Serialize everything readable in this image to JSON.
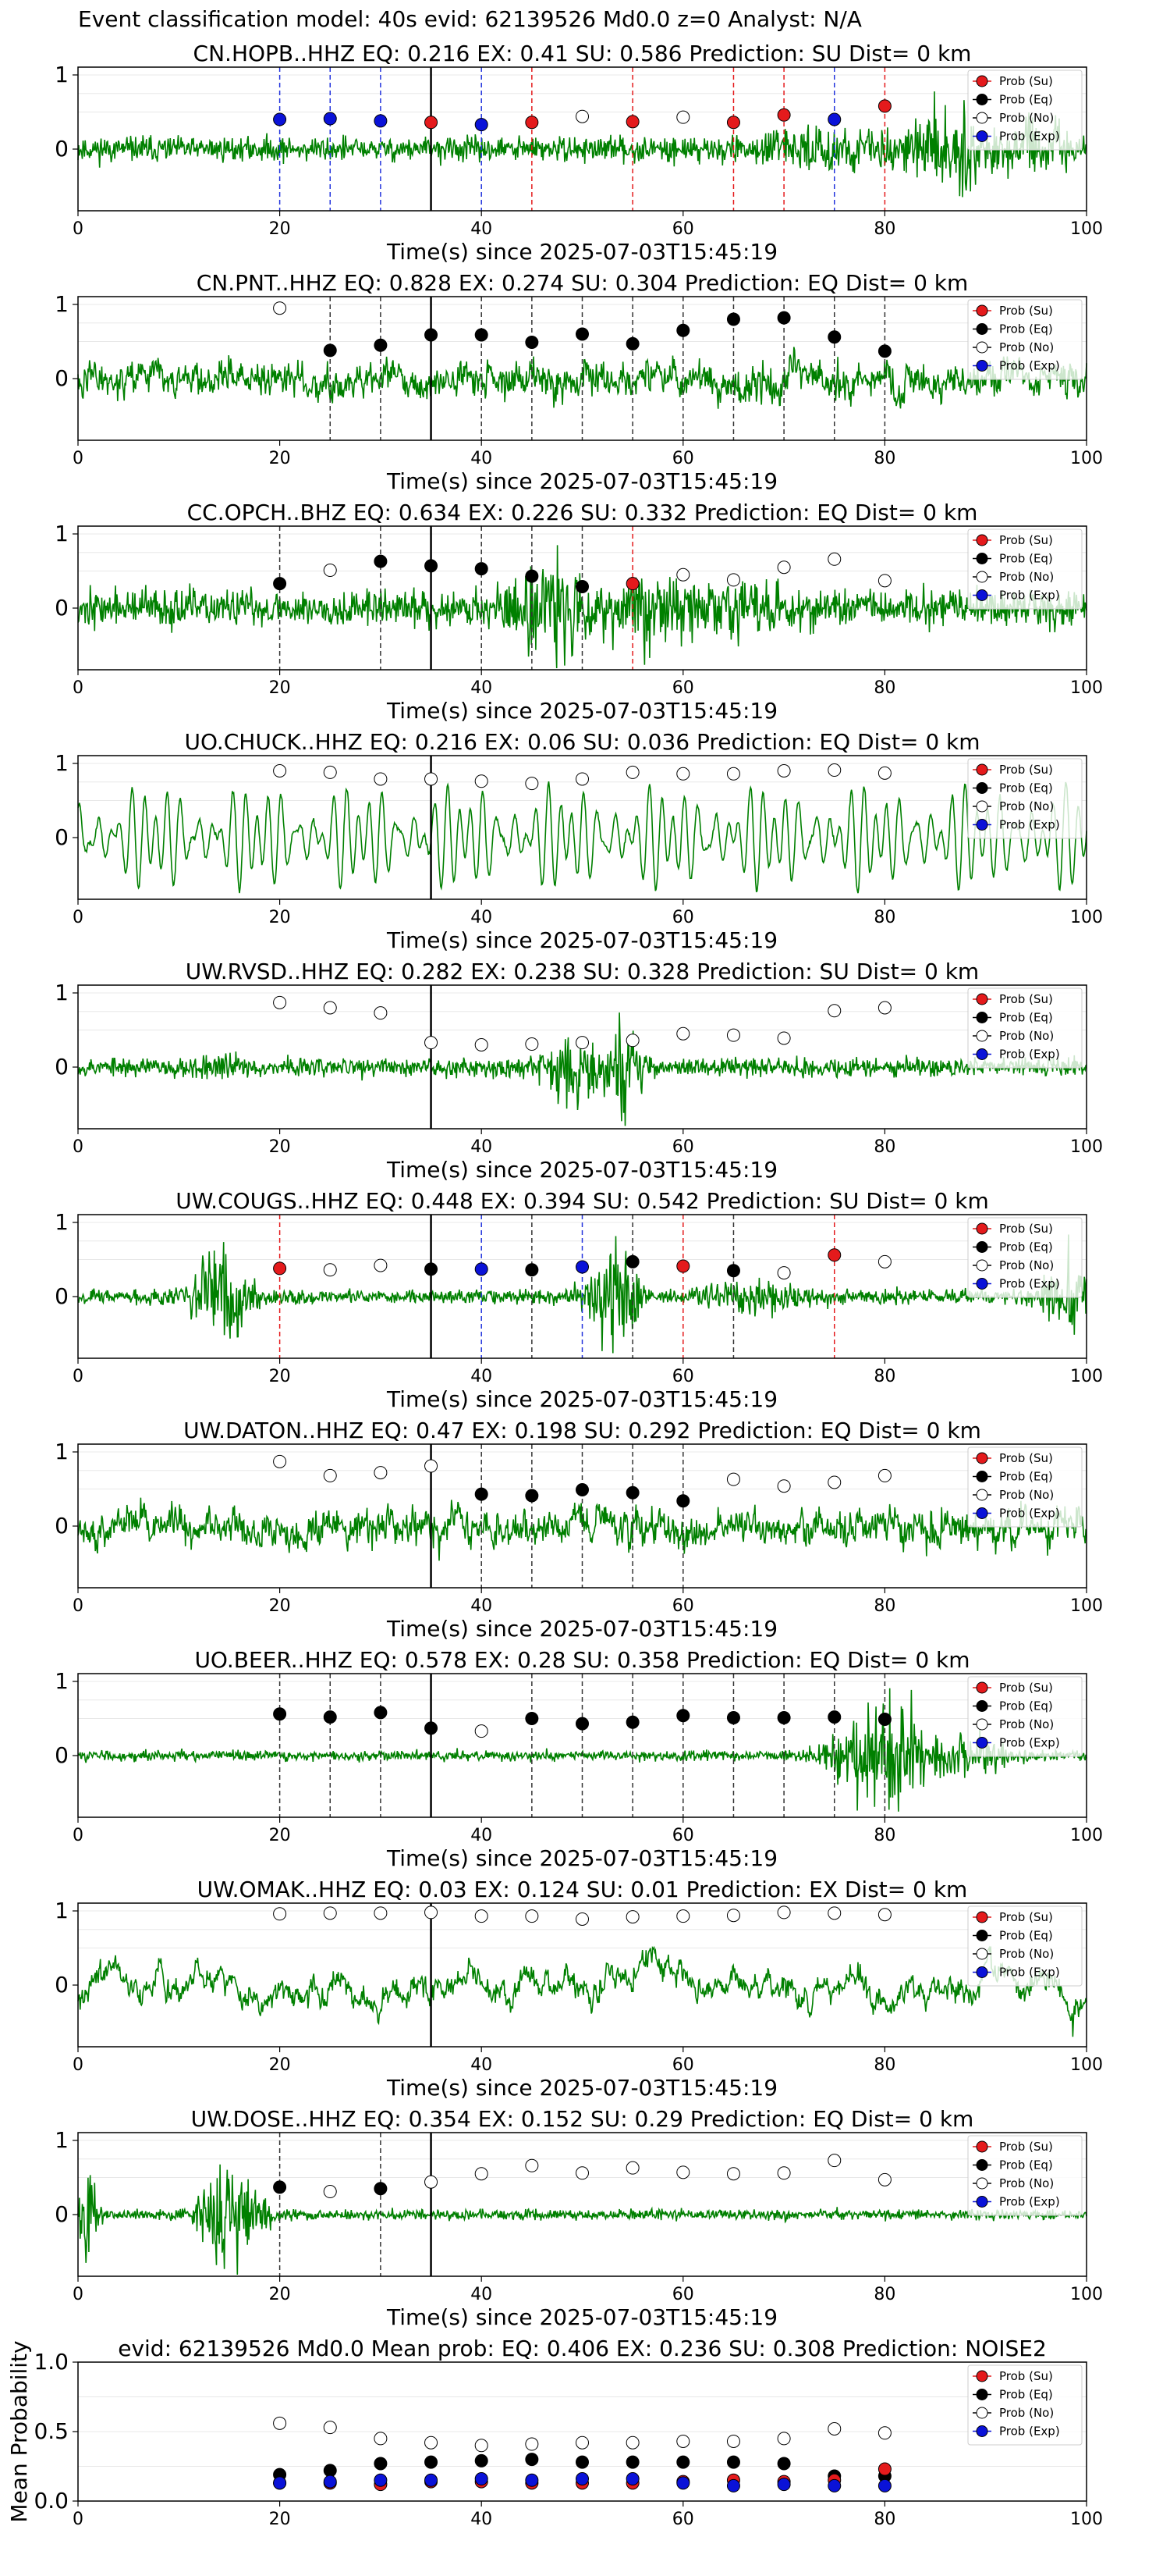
{
  "figure": {
    "title": "Event classification model: 40s evid: 62139526 Md0.0 z=0 Analyst: N/A",
    "xlabel": "Time(s) since 2025-07-03T15:45:19"
  },
  "legend": {
    "items": [
      {
        "label": "Prob (Su)",
        "fill": "#e41a1c"
      },
      {
        "label": "Prob (Eq)",
        "fill": "#000000"
      },
      {
        "label": "Prob (No)",
        "fill": "#ffffff"
      },
      {
        "label": "Prob (Exp)",
        "fill": "#0a12d8"
      }
    ]
  },
  "colors": {
    "waveform": "#008000",
    "su": "#e41a1c",
    "eq": "#000000",
    "no": "#ffffff",
    "exp": "#0a12d8",
    "dash_su": "#e41a1c",
    "dash_eq": "#333333",
    "dash_exp": "#2233dd"
  },
  "chart_data": [
    {
      "type": "line",
      "station": "CN.HOPB..HHZ",
      "prediction": "SU",
      "title": "CN.HOPB..HHZ   EQ: 0.216   EX: 0.41   SU: 0.586   Prediction: SU    Dist= 0 km",
      "xlim": [
        0,
        100
      ],
      "yticks": [
        0,
        1
      ],
      "xticks": [
        0,
        20,
        40,
        60,
        80,
        100
      ],
      "pick_time": 35,
      "waveform_style": "hf",
      "seed": 11,
      "points": [
        {
          "t": 20,
          "cls": "exp",
          "p": 0.4
        },
        {
          "t": 25,
          "cls": "exp",
          "p": 0.41
        },
        {
          "t": 30,
          "cls": "exp",
          "p": 0.38
        },
        {
          "t": 35,
          "cls": "su",
          "p": 0.36
        },
        {
          "t": 40,
          "cls": "exp",
          "p": 0.33
        },
        {
          "t": 45,
          "cls": "su",
          "p": 0.36
        },
        {
          "t": 50,
          "cls": "no",
          "p": 0.44
        },
        {
          "t": 55,
          "cls": "su",
          "p": 0.37
        },
        {
          "t": 60,
          "cls": "no",
          "p": 0.43
        },
        {
          "t": 65,
          "cls": "su",
          "p": 0.36
        },
        {
          "t": 70,
          "cls": "su",
          "p": 0.46
        },
        {
          "t": 75,
          "cls": "exp",
          "p": 0.4
        },
        {
          "t": 80,
          "cls": "su",
          "p": 0.58
        }
      ]
    },
    {
      "type": "line",
      "station": "CN.PNT..HHZ",
      "prediction": "EQ",
      "title": "CN.PNT..HHZ   EQ: 0.828  EX: 0.274  SU: 0.304   Prediction: EQ    Dist= 0 km",
      "xlim": [
        0,
        100
      ],
      "yticks": [
        0,
        1
      ],
      "xticks": [
        0,
        20,
        40,
        60,
        80,
        100
      ],
      "pick_time": 35,
      "waveform_style": "mixed",
      "seed": 23,
      "points": [
        {
          "t": 20,
          "cls": "no",
          "p": 0.95
        },
        {
          "t": 25,
          "cls": "eq",
          "p": 0.38
        },
        {
          "t": 30,
          "cls": "eq",
          "p": 0.45
        },
        {
          "t": 35,
          "cls": "eq",
          "p": 0.59
        },
        {
          "t": 40,
          "cls": "eq",
          "p": 0.59
        },
        {
          "t": 45,
          "cls": "eq",
          "p": 0.49
        },
        {
          "t": 50,
          "cls": "eq",
          "p": 0.6
        },
        {
          "t": 55,
          "cls": "eq",
          "p": 0.47
        },
        {
          "t": 60,
          "cls": "eq",
          "p": 0.65
        },
        {
          "t": 65,
          "cls": "eq",
          "p": 0.8
        },
        {
          "t": 70,
          "cls": "eq",
          "p": 0.82
        },
        {
          "t": 75,
          "cls": "eq",
          "p": 0.56
        },
        {
          "t": 80,
          "cls": "eq",
          "p": 0.37
        }
      ]
    },
    {
      "type": "line",
      "station": "CC.OPCH..BHZ",
      "prediction": "EQ",
      "title": "CC.OPCH..BHZ   EQ: 0.634  EX: 0.226  SU: 0.332   Prediction: EQ    Dist= 0 km",
      "xlim": [
        0,
        100
      ],
      "yticks": [
        0,
        1
      ],
      "xticks": [
        0,
        20,
        40,
        60,
        80,
        100
      ],
      "pick_time": 35,
      "waveform_style": "burst",
      "seed": 37,
      "points": [
        {
          "t": 20,
          "cls": "eq",
          "p": 0.33
        },
        {
          "t": 25,
          "cls": "no",
          "p": 0.51
        },
        {
          "t": 30,
          "cls": "eq",
          "p": 0.63
        },
        {
          "t": 35,
          "cls": "eq",
          "p": 0.57
        },
        {
          "t": 40,
          "cls": "eq",
          "p": 0.53
        },
        {
          "t": 45,
          "cls": "eq",
          "p": 0.43
        },
        {
          "t": 50,
          "cls": "eq",
          "p": 0.29
        },
        {
          "t": 55,
          "cls": "su",
          "p": 0.33
        },
        {
          "t": 60,
          "cls": "no",
          "p": 0.45
        },
        {
          "t": 65,
          "cls": "no",
          "p": 0.38
        },
        {
          "t": 70,
          "cls": "no",
          "p": 0.55
        },
        {
          "t": 75,
          "cls": "no",
          "p": 0.66
        },
        {
          "t": 80,
          "cls": "no",
          "p": 0.37
        }
      ]
    },
    {
      "type": "line",
      "station": "UO.CHUCK..HHZ",
      "prediction": "EQ",
      "title": "UO.CHUCK..HHZ   EQ: 0.216   EX: 0.06   SU: 0.036    Prediction: EQ    Dist= 0 km",
      "xlim": [
        0,
        100
      ],
      "yticks": [
        0,
        1
      ],
      "xticks": [
        0,
        20,
        40,
        60,
        80,
        100
      ],
      "pick_time": 35,
      "waveform_style": "smooth",
      "seed": 41,
      "points": [
        {
          "t": 20,
          "cls": "no",
          "p": 0.9
        },
        {
          "t": 25,
          "cls": "no",
          "p": 0.88
        },
        {
          "t": 30,
          "cls": "no",
          "p": 0.79
        },
        {
          "t": 35,
          "cls": "no",
          "p": 0.79
        },
        {
          "t": 40,
          "cls": "no",
          "p": 0.76
        },
        {
          "t": 45,
          "cls": "no",
          "p": 0.73
        },
        {
          "t": 50,
          "cls": "no",
          "p": 0.79
        },
        {
          "t": 55,
          "cls": "no",
          "p": 0.88
        },
        {
          "t": 60,
          "cls": "no",
          "p": 0.86
        },
        {
          "t": 65,
          "cls": "no",
          "p": 0.86
        },
        {
          "t": 70,
          "cls": "no",
          "p": 0.9
        },
        {
          "t": 75,
          "cls": "no",
          "p": 0.91
        },
        {
          "t": 80,
          "cls": "no",
          "p": 0.87
        }
      ]
    },
    {
      "type": "line",
      "station": "UW.RVSD..HHZ",
      "prediction": "SU",
      "title": "UW.RVSD..HHZ   EQ: 0.282  EX: 0.238  SU: 0.328   Prediction: SU    Dist= 0 km",
      "xlim": [
        0,
        100
      ],
      "yticks": [
        0,
        1
      ],
      "xticks": [
        0,
        20,
        40,
        60,
        80,
        100
      ],
      "pick_time": 35,
      "waveform_style": "noise_burst",
      "seed": 53,
      "points": [
        {
          "t": 20,
          "cls": "no",
          "p": 0.87
        },
        {
          "t": 25,
          "cls": "no",
          "p": 0.8
        },
        {
          "t": 30,
          "cls": "no",
          "p": 0.73
        },
        {
          "t": 35,
          "cls": "no",
          "p": 0.33
        },
        {
          "t": 40,
          "cls": "no",
          "p": 0.3
        },
        {
          "t": 45,
          "cls": "no",
          "p": 0.31
        },
        {
          "t": 50,
          "cls": "no",
          "p": 0.33
        },
        {
          "t": 55,
          "cls": "no",
          "p": 0.36
        },
        {
          "t": 60,
          "cls": "no",
          "p": 0.45
        },
        {
          "t": 65,
          "cls": "no",
          "p": 0.43
        },
        {
          "t": 70,
          "cls": "no",
          "p": 0.39
        },
        {
          "t": 75,
          "cls": "no",
          "p": 0.76
        },
        {
          "t": 80,
          "cls": "no",
          "p": 0.8
        }
      ]
    },
    {
      "type": "line",
      "station": "UW.COUGS..HHZ",
      "prediction": "SU",
      "title": "UW.COUGS..HHZ   EQ: 0.448  EX: 0.394  SU: 0.542   Prediction: SU    Dist= 0 km",
      "xlim": [
        0,
        100
      ],
      "yticks": [
        0,
        1
      ],
      "xticks": [
        0,
        20,
        40,
        60,
        80,
        100
      ],
      "pick_time": 35,
      "waveform_style": "two_bursts",
      "seed": 67,
      "points": [
        {
          "t": 20,
          "cls": "su",
          "p": 0.38
        },
        {
          "t": 25,
          "cls": "no",
          "p": 0.36
        },
        {
          "t": 30,
          "cls": "no",
          "p": 0.42
        },
        {
          "t": 35,
          "cls": "eq",
          "p": 0.37
        },
        {
          "t": 40,
          "cls": "exp",
          "p": 0.37
        },
        {
          "t": 45,
          "cls": "eq",
          "p": 0.36
        },
        {
          "t": 50,
          "cls": "exp",
          "p": 0.4
        },
        {
          "t": 55,
          "cls": "eq",
          "p": 0.47
        },
        {
          "t": 60,
          "cls": "su",
          "p": 0.41
        },
        {
          "t": 65,
          "cls": "eq",
          "p": 0.35
        },
        {
          "t": 70,
          "cls": "no",
          "p": 0.32
        },
        {
          "t": 75,
          "cls": "su",
          "p": 0.56
        },
        {
          "t": 80,
          "cls": "no",
          "p": 0.47
        }
      ]
    },
    {
      "type": "line",
      "station": "UW.DATON..HHZ",
      "prediction": "EQ",
      "title": "UW.DATON..HHZ   EQ: 0.47  EX: 0.198  SU: 0.292   Prediction: EQ    Dist= 0 km",
      "xlim": [
        0,
        100
      ],
      "yticks": [
        0,
        1
      ],
      "xticks": [
        0,
        20,
        40,
        60,
        80,
        100
      ],
      "pick_time": 35,
      "waveform_style": "mixed",
      "seed": 79,
      "points": [
        {
          "t": 20,
          "cls": "no",
          "p": 0.87
        },
        {
          "t": 25,
          "cls": "no",
          "p": 0.68
        },
        {
          "t": 30,
          "cls": "no",
          "p": 0.72
        },
        {
          "t": 35,
          "cls": "no",
          "p": 0.81
        },
        {
          "t": 40,
          "cls": "eq",
          "p": 0.43
        },
        {
          "t": 45,
          "cls": "eq",
          "p": 0.41
        },
        {
          "t": 50,
          "cls": "eq",
          "p": 0.49
        },
        {
          "t": 55,
          "cls": "eq",
          "p": 0.45
        },
        {
          "t": 60,
          "cls": "eq",
          "p": 0.34
        },
        {
          "t": 65,
          "cls": "no",
          "p": 0.63
        },
        {
          "t": 70,
          "cls": "no",
          "p": 0.54
        },
        {
          "t": 75,
          "cls": "no",
          "p": 0.59
        },
        {
          "t": 80,
          "cls": "no",
          "p": 0.68
        }
      ]
    },
    {
      "type": "line",
      "station": "UO.BEER..HHZ",
      "prediction": "EQ",
      "title": "UO.BEER..HHZ   EQ: 0.578  EX: 0.28  SU: 0.358   Prediction: EQ    Dist= 0 km",
      "xlim": [
        0,
        100
      ],
      "yticks": [
        0,
        1
      ],
      "xticks": [
        0,
        20,
        40,
        60,
        80,
        100
      ],
      "pick_time": 35,
      "waveform_style": "late_burst",
      "seed": 83,
      "points": [
        {
          "t": 20,
          "cls": "eq",
          "p": 0.56
        },
        {
          "t": 25,
          "cls": "eq",
          "p": 0.52
        },
        {
          "t": 30,
          "cls": "eq",
          "p": 0.58
        },
        {
          "t": 35,
          "cls": "eq",
          "p": 0.37
        },
        {
          "t": 40,
          "cls": "no",
          "p": 0.33
        },
        {
          "t": 45,
          "cls": "eq",
          "p": 0.5
        },
        {
          "t": 50,
          "cls": "eq",
          "p": 0.43
        },
        {
          "t": 55,
          "cls": "eq",
          "p": 0.45
        },
        {
          "t": 60,
          "cls": "eq",
          "p": 0.54
        },
        {
          "t": 65,
          "cls": "eq",
          "p": 0.51
        },
        {
          "t": 70,
          "cls": "eq",
          "p": 0.51
        },
        {
          "t": 75,
          "cls": "eq",
          "p": 0.52
        },
        {
          "t": 80,
          "cls": "eq",
          "p": 0.49
        }
      ]
    },
    {
      "type": "line",
      "station": "UW.OMAK..HHZ",
      "prediction": "EX",
      "title": "UW.OMAK..HHZ   EQ: 0.03  EX: 0.124  SU: 0.01   Prediction: EX    Dist= 0 km",
      "xlim": [
        0,
        100
      ],
      "yticks": [
        0,
        1
      ],
      "xticks": [
        0,
        20,
        40,
        60,
        80,
        100
      ],
      "pick_time": 35,
      "waveform_style": "lowfreq",
      "seed": 97,
      "points": [
        {
          "t": 20,
          "cls": "no",
          "p": 0.96
        },
        {
          "t": 25,
          "cls": "no",
          "p": 0.97
        },
        {
          "t": 30,
          "cls": "no",
          "p": 0.97
        },
        {
          "t": 35,
          "cls": "no",
          "p": 0.98
        },
        {
          "t": 40,
          "cls": "no",
          "p": 0.93
        },
        {
          "t": 45,
          "cls": "no",
          "p": 0.93
        },
        {
          "t": 50,
          "cls": "no",
          "p": 0.89
        },
        {
          "t": 55,
          "cls": "no",
          "p": 0.92
        },
        {
          "t": 60,
          "cls": "no",
          "p": 0.93
        },
        {
          "t": 65,
          "cls": "no",
          "p": 0.94
        },
        {
          "t": 70,
          "cls": "no",
          "p": 0.98
        },
        {
          "t": 75,
          "cls": "no",
          "p": 0.97
        },
        {
          "t": 80,
          "cls": "no",
          "p": 0.95
        }
      ]
    },
    {
      "type": "line",
      "station": "UW.DOSE..HHZ",
      "prediction": "EQ",
      "title": "UW.DOSE..HHZ   EQ: 0.354  EX: 0.152  SU: 0.29   Prediction: EQ    Dist= 0 km",
      "xlim": [
        0,
        100
      ],
      "yticks": [
        0,
        1
      ],
      "xticks": [
        0,
        20,
        40,
        60,
        80,
        100
      ],
      "pick_time": 35,
      "waveform_style": "early_burst",
      "seed": 101,
      "points": [
        {
          "t": 20,
          "cls": "eq",
          "p": 0.37
        },
        {
          "t": 25,
          "cls": "no",
          "p": 0.31
        },
        {
          "t": 30,
          "cls": "eq",
          "p": 0.35
        },
        {
          "t": 35,
          "cls": "no",
          "p": 0.44
        },
        {
          "t": 40,
          "cls": "no",
          "p": 0.55
        },
        {
          "t": 45,
          "cls": "no",
          "p": 0.66
        },
        {
          "t": 50,
          "cls": "no",
          "p": 0.56
        },
        {
          "t": 55,
          "cls": "no",
          "p": 0.63
        },
        {
          "t": 60,
          "cls": "no",
          "p": 0.57
        },
        {
          "t": 65,
          "cls": "no",
          "p": 0.55
        },
        {
          "t": 70,
          "cls": "no",
          "p": 0.56
        },
        {
          "t": 75,
          "cls": "no",
          "p": 0.73
        },
        {
          "t": 80,
          "cls": "no",
          "p": 0.47
        }
      ]
    },
    {
      "type": "scatter",
      "station": "mean",
      "title": "evid: 62139526  Md0.0   Mean prob:   EQ: 0.406  EX: 0.236  SU: 0.308   Prediction: NOISE2",
      "ylabel": "Mean Probability",
      "xlim": [
        0,
        100
      ],
      "ylim": [
        0,
        1.0
      ],
      "yticks": [
        0.0,
        0.5,
        1.0
      ],
      "ytick_labels": [
        "0.0",
        "0.5",
        "1.0"
      ],
      "xticks": [
        0,
        20,
        40,
        60,
        80,
        100
      ],
      "x": [
        20,
        25,
        30,
        35,
        40,
        45,
        50,
        55,
        60,
        65,
        70,
        75,
        80
      ],
      "series": [
        {
          "name": "Prob (No)",
          "cls": "no",
          "values": [
            0.56,
            0.53,
            0.45,
            0.42,
            0.4,
            0.41,
            0.42,
            0.42,
            0.43,
            0.43,
            0.45,
            0.52,
            0.49
          ]
        },
        {
          "name": "Prob (Eq)",
          "cls": "eq",
          "values": [
            0.19,
            0.22,
            0.27,
            0.28,
            0.29,
            0.3,
            0.28,
            0.28,
            0.28,
            0.28,
            0.27,
            0.18,
            0.18
          ]
        },
        {
          "name": "Prob (Su)",
          "cls": "su",
          "values": [
            0.13,
            0.13,
            0.12,
            0.14,
            0.14,
            0.13,
            0.13,
            0.13,
            0.14,
            0.15,
            0.14,
            0.15,
            0.23
          ]
        },
        {
          "name": "Prob (Exp)",
          "cls": "exp",
          "values": [
            0.13,
            0.14,
            0.15,
            0.15,
            0.16,
            0.15,
            0.16,
            0.16,
            0.13,
            0.11,
            0.12,
            0.11,
            0.11
          ]
        }
      ]
    }
  ]
}
